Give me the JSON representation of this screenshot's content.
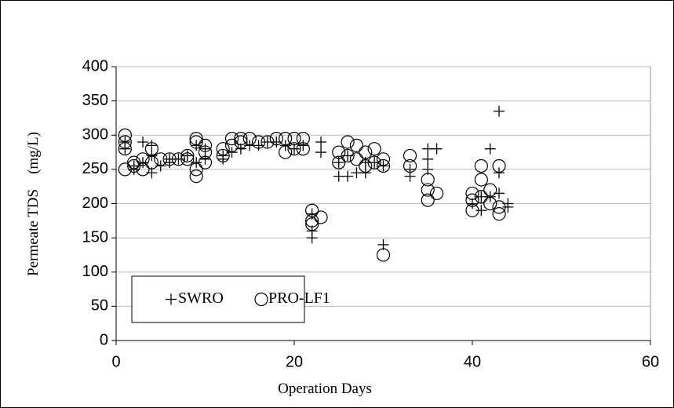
{
  "chart_data": {
    "type": "scatter",
    "xlabel": "Operation Days",
    "ylabel": "Permeate TDS　(mg/L)",
    "xlim": [
      0,
      60
    ],
    "xticks": [
      0,
      20,
      40,
      60
    ],
    "ylim": [
      0,
      400
    ],
    "yticks": [
      0,
      50,
      100,
      150,
      200,
      250,
      300,
      350,
      400
    ],
    "grid": true,
    "legend_position": "lower left",
    "series": [
      {
        "name": "SWRO",
        "marker": "plus",
        "color": "#000000",
        "x": [
          1,
          1,
          2,
          2,
          3,
          3,
          4,
          4,
          4,
          5,
          6,
          6,
          7,
          8,
          9,
          9,
          10,
          10,
          12,
          12,
          13,
          14,
          15,
          16,
          17,
          18,
          19,
          20,
          21,
          22,
          22,
          22,
          23,
          23,
          25,
          25,
          26,
          26,
          27,
          28,
          28,
          29,
          30,
          30,
          33,
          33,
          35,
          35,
          35,
          36,
          40,
          41,
          41,
          42,
          42,
          43,
          43,
          43,
          44,
          44
        ],
        "values": [
          290,
          280,
          255,
          250,
          290,
          260,
          285,
          245,
          270,
          255,
          265,
          260,
          265,
          270,
          285,
          260,
          265,
          280,
          270,
          265,
          275,
          280,
          285,
          285,
          290,
          290,
          285,
          280,
          285,
          150,
          160,
          185,
          275,
          290,
          240,
          260,
          240,
          270,
          245,
          245,
          260,
          260,
          140,
          255,
          240,
          250,
          250,
          265,
          280,
          280,
          200,
          190,
          210,
          280,
          210,
          335,
          245,
          215,
          195,
          200
        ]
      },
      {
        "name": "PRO-LF1",
        "marker": "circle",
        "color": "#000000",
        "x": [
          1,
          1,
          1,
          1,
          2,
          2,
          3,
          3,
          4,
          4,
          5,
          6,
          7,
          8,
          8,
          9,
          9,
          9,
          9,
          10,
          10,
          10,
          12,
          12,
          13,
          13,
          14,
          14,
          15,
          16,
          17,
          18,
          19,
          19,
          20,
          20,
          21,
          21,
          22,
          22,
          22,
          23,
          25,
          25,
          26,
          26,
          27,
          27,
          28,
          28,
          29,
          29,
          30,
          30,
          30,
          33,
          33,
          35,
          35,
          35,
          36,
          40,
          40,
          40,
          41,
          41,
          41,
          42,
          42,
          43,
          43,
          43
        ],
        "values": [
          300,
          290,
          280,
          250,
          255,
          260,
          250,
          265,
          260,
          280,
          265,
          265,
          265,
          270,
          265,
          295,
          290,
          240,
          250,
          275,
          285,
          260,
          280,
          270,
          295,
          285,
          290,
          295,
          295,
          290,
          290,
          295,
          295,
          275,
          295,
          280,
          295,
          280,
          190,
          170,
          175,
          180,
          275,
          260,
          290,
          270,
          285,
          265,
          275,
          255,
          280,
          260,
          265,
          255,
          125,
          270,
          255,
          235,
          220,
          205,
          215,
          205,
          215,
          190,
          255,
          235,
          210,
          220,
          200,
          255,
          185,
          195
        ]
      }
    ]
  }
}
